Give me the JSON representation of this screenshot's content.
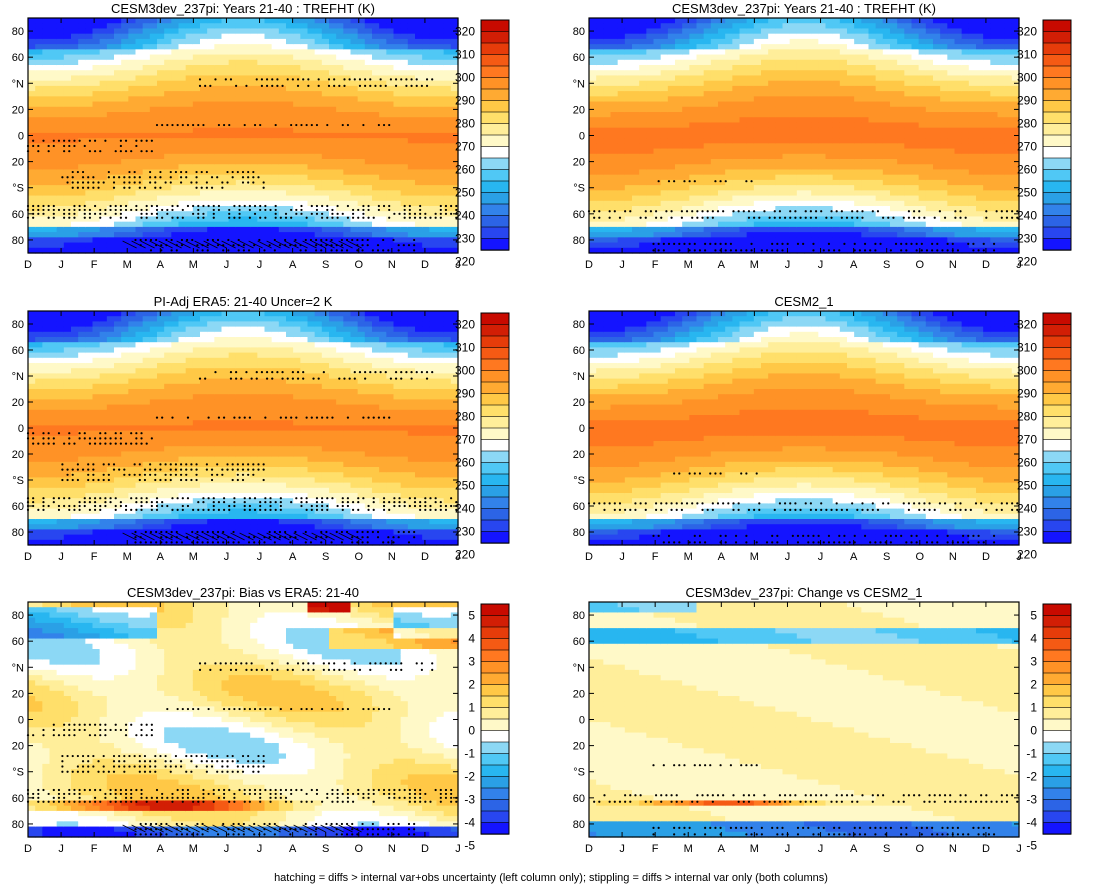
{
  "caption": "hatching = diffs > internal var+obs uncertainty (left column only); stippling = diffs > internal var only (both columns)",
  "chart_data": [
    {
      "type": "heatmap",
      "title": "CESM3dev_237pi: Years 21-40 : TREFHT (K)",
      "field": "clim",
      "hatch": true,
      "stipple_level": 3,
      "x_ticks": [
        "D",
        "J",
        "F",
        "M",
        "A",
        "M",
        "J",
        "J",
        "A",
        "S",
        "O",
        "N",
        "D",
        "J"
      ],
      "y_ticks": [
        "80",
        "60",
        "°N",
        "20",
        "0",
        "20",
        "°S",
        "60",
        "80"
      ],
      "colorbar": [
        "320",
        "310",
        "300",
        "290",
        "280",
        "270",
        "260",
        "250",
        "240",
        "230",
        "220"
      ]
    },
    {
      "type": "heatmap",
      "title": "CESM3dev_237pi: Years 21-40 : TREFHT (K)",
      "field": "clim2",
      "hatch": false,
      "stipple_level": 1,
      "x_ticks": [
        "D",
        "J",
        "F",
        "M",
        "A",
        "M",
        "J",
        "J",
        "A",
        "S",
        "O",
        "N",
        "D",
        "J"
      ],
      "y_ticks": [
        "80",
        "60",
        "°N",
        "20",
        "0",
        "20",
        "°S",
        "60",
        "80"
      ],
      "colorbar": [
        "320",
        "310",
        "300",
        "290",
        "280",
        "270",
        "260",
        "250",
        "240",
        "230",
        "220"
      ]
    },
    {
      "type": "heatmap",
      "title": "PI-Adj ERA5: 21-40 Uncer=2 K",
      "field": "clim",
      "hatch": true,
      "stipple_level": 3,
      "x_ticks": [
        "D",
        "J",
        "F",
        "M",
        "A",
        "M",
        "J",
        "J",
        "A",
        "S",
        "O",
        "N",
        "D",
        "J"
      ],
      "y_ticks": [
        "80",
        "60",
        "°N",
        "20",
        "0",
        "20",
        "°S",
        "60",
        "80"
      ],
      "colorbar": [
        "320",
        "310",
        "300",
        "290",
        "280",
        "270",
        "260",
        "250",
        "240",
        "230",
        "220"
      ]
    },
    {
      "type": "heatmap",
      "title": "CESM2_1",
      "field": "clim2",
      "hatch": false,
      "stipple_level": 1,
      "x_ticks": [
        "D",
        "J",
        "F",
        "M",
        "A",
        "M",
        "J",
        "J",
        "A",
        "S",
        "O",
        "N",
        "D",
        "J"
      ],
      "y_ticks": [
        "80",
        "60",
        "°N",
        "20",
        "0",
        "20",
        "°S",
        "60",
        "80"
      ],
      "colorbar": [
        "320",
        "310",
        "300",
        "290",
        "280",
        "270",
        "260",
        "250",
        "240",
        "230",
        "220"
      ]
    },
    {
      "type": "heatmap",
      "title": "CESM3dev_237pi: Bias vs ERA5: 21-40",
      "field": "bias",
      "hatch": true,
      "stipple_level": 3,
      "x_ticks": [
        "D",
        "J",
        "F",
        "M",
        "A",
        "M",
        "J",
        "J",
        "A",
        "S",
        "O",
        "N",
        "D",
        "J"
      ],
      "y_ticks": [
        "80",
        "60",
        "°N",
        "20",
        "0",
        "20",
        "°S",
        "60",
        "80"
      ],
      "colorbar": [
        "5",
        "4",
        "3",
        "2",
        "1",
        "0",
        "-1",
        "-2",
        "-3",
        "-4",
        "-5"
      ]
    },
    {
      "type": "heatmap",
      "title": "CESM3dev_237pi: Change vs CESM2_1",
      "field": "change",
      "hatch": false,
      "stipple_level": 1,
      "x_ticks": [
        "D",
        "J",
        "F",
        "M",
        "A",
        "M",
        "J",
        "J",
        "A",
        "S",
        "O",
        "N",
        "D",
        "J"
      ],
      "y_ticks": [
        "80",
        "60",
        "°N",
        "20",
        "0",
        "20",
        "°S",
        "60",
        "80"
      ],
      "colorbar": [
        "5",
        "4",
        "3",
        "2",
        "1",
        "0",
        "-1",
        "-2",
        "-3",
        "-4",
        "-5"
      ]
    }
  ],
  "palette": [
    "#1414ff",
    "#2846f0",
    "#2c64e6",
    "#3282ea",
    "#2aa0e6",
    "#28b6f0",
    "#50c8f5",
    "#8cd8f5",
    "#ffffff",
    "#fff9c8",
    "#ffee9a",
    "#ffdf6a",
    "#ffc846",
    "#ffaa32",
    "#ff9226",
    "#ff7820",
    "#f55a14",
    "#e63c0a",
    "#d21e05",
    "#c80a00"
  ]
}
